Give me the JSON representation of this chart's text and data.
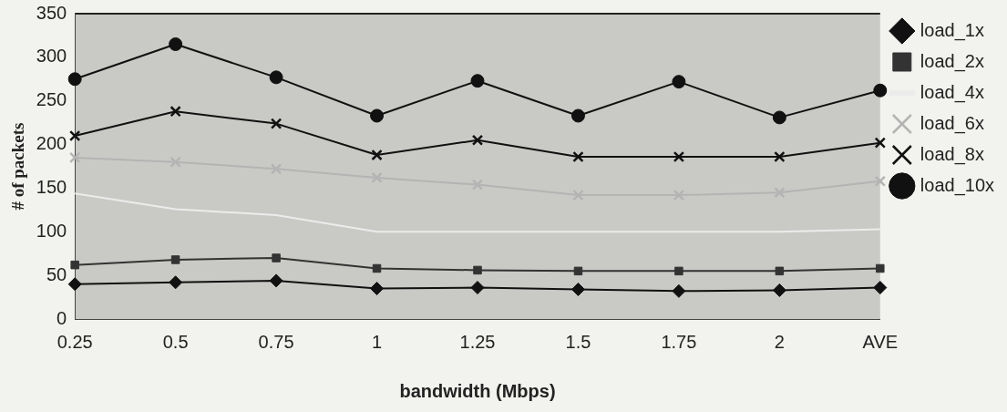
{
  "chart_data": {
    "type": "line",
    "xlabel": "bandwidth (Mbps)",
    "ylabel": "# of packets",
    "categories": [
      "0.25",
      "0.5",
      "0.75",
      "1",
      "1.25",
      "1.5",
      "1.75",
      "2",
      "AVE"
    ],
    "series": [
      {
        "name": "load_1x",
        "color": "#111111",
        "marker": "diamond",
        "values": [
          40,
          42,
          44,
          35,
          36,
          34,
          32,
          33,
          36
        ]
      },
      {
        "name": "load_2x",
        "color": "#333333",
        "marker": "square",
        "values": [
          62,
          68,
          70,
          58,
          56,
          55,
          55,
          55,
          58
        ]
      },
      {
        "name": "load_4x",
        "color": "#ececec",
        "marker": "none",
        "values": [
          144,
          126,
          119,
          100,
          100,
          100,
          100,
          100,
          103
        ]
      },
      {
        "name": "load_6x",
        "color": "#b4b4b4",
        "marker": "cross",
        "values": [
          185,
          180,
          172,
          162,
          154,
          142,
          142,
          145,
          158
        ]
      },
      {
        "name": "load_8x",
        "color": "#111111",
        "marker": "cross",
        "values": [
          210,
          238,
          224,
          188,
          205,
          186,
          186,
          186,
          202
        ]
      },
      {
        "name": "load_10x",
        "color": "#111111",
        "marker": "circle",
        "values": [
          275,
          315,
          277,
          233,
          273,
          233,
          272,
          231,
          262
        ]
      }
    ],
    "ylim": [
      0,
      350
    ],
    "yticks": [
      0,
      50,
      100,
      150,
      200,
      250,
      300,
      350
    ],
    "grid": false,
    "legend": "right"
  }
}
